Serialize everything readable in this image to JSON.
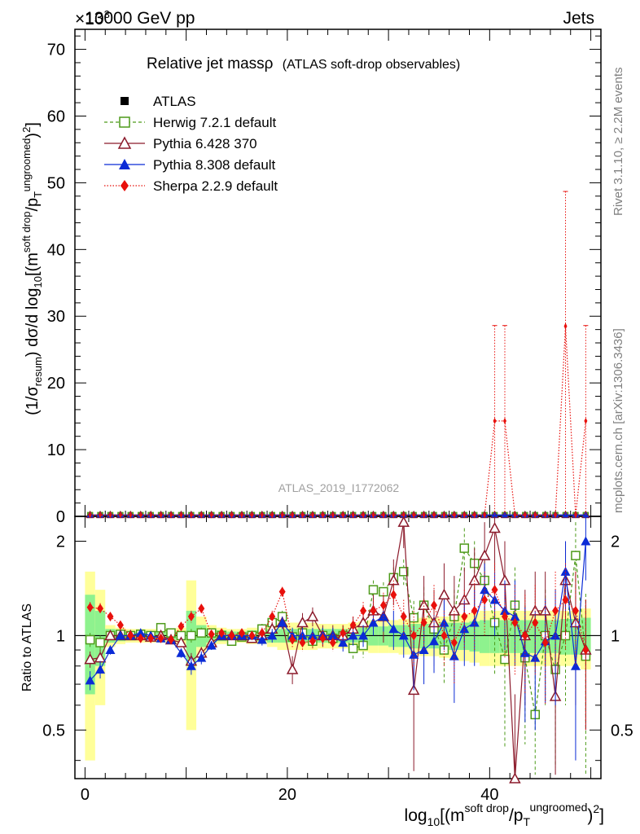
{
  "header": {
    "left_label": "13000 GeV pp",
    "exponent_label": "×10^{3}",
    "right_label": "Jets"
  },
  "watermark": "ATLAS_2019_I1772062",
  "side_texts": {
    "upper": "Rivet 3.1.10, ≥ 2.2M events",
    "lower": "mcplots.cern.ch [arXiv:1306.3436]"
  },
  "chart_data": {
    "type": "line",
    "title": "Relative jet massρ",
    "subtitle": "(ATLAS soft-drop observables)",
    "xlabel": "log10[(m^{soft drop}/pT^{ungroomed})^2]",
    "ylabel": "(1/σresum) dσ/d log10[(m^{soft drop}/pT^{ungroomed})^2]",
    "ratio_ylabel": "Ratio to ATLAS",
    "x_ticks": [
      "0",
      "20",
      "40"
    ],
    "y_ticks": [
      "0",
      "10",
      "20",
      "30",
      "40",
      "50",
      "60",
      "70"
    ],
    "ratio_ticks": [
      "0.5",
      "1",
      "2"
    ],
    "xlim": [
      -1,
      51
    ],
    "ylim": [
      0,
      73
    ],
    "ratio_ylim": [
      0.35,
      2.4
    ],
    "ratio_log_scale": true,
    "x": [
      0.5,
      1.5,
      2.5,
      3.5,
      4.5,
      5.5,
      6.5,
      7.5,
      8.5,
      9.5,
      10.5,
      11.5,
      12.5,
      13.5,
      14.5,
      15.5,
      16.5,
      17.5,
      18.5,
      19.5,
      20.5,
      21.5,
      22.5,
      23.5,
      24.5,
      25.5,
      26.5,
      27.5,
      28.5,
      29.5,
      30.5,
      31.5,
      32.5,
      33.5,
      34.5,
      35.5,
      36.5,
      37.5,
      38.5,
      39.5,
      40.5,
      41.5,
      42.5,
      43.5,
      44.5,
      45.5,
      46.5,
      47.5,
      48.5,
      49.5
    ],
    "main_series": [
      {
        "name": "ATLAS",
        "color": "#000000",
        "marker": "filled-square",
        "values": [
          0.2,
          0.2,
          0.2,
          0.2,
          0.2,
          0.2,
          0.2,
          0.2,
          0.2,
          0.2,
          0.2,
          0.2,
          0.2,
          0.2,
          0.2,
          0.2,
          0.2,
          0.2,
          0.2,
          0.2,
          0.2,
          0.2,
          0.2,
          0.2,
          0.2,
          0.2,
          0.2,
          0.2,
          0.2,
          0.2,
          0.2,
          0.2,
          0.2,
          0.2,
          0.2,
          0.2,
          0.2,
          0.2,
          0.2,
          0.2,
          0.2,
          0.2,
          0.2,
          0.2,
          0.2,
          0.2,
          0.2,
          0.2,
          0.2,
          0.2
        ]
      },
      {
        "name": "Herwig 7.2.1 default",
        "color": "#4d9a1a",
        "marker": "open-square",
        "dash": "4,3",
        "values": [
          0.2,
          0.2,
          0.2,
          0.2,
          0.2,
          0.2,
          0.2,
          0.2,
          0.2,
          0.2,
          0.2,
          0.2,
          0.2,
          0.2,
          0.2,
          0.2,
          0.2,
          0.2,
          0.2,
          0.2,
          0.2,
          0.2,
          0.2,
          0.2,
          0.2,
          0.2,
          0.2,
          0.2,
          0.2,
          0.2,
          0.2,
          0.2,
          0.2,
          0.2,
          0.2,
          0.2,
          0.2,
          0.2,
          0.2,
          0.2,
          0.2,
          0.2,
          0.2,
          0.2,
          0.2,
          0.2,
          0.2,
          0.2,
          0.2,
          0.2
        ]
      },
      {
        "name": "Pythia 6.428 370",
        "color": "#8b1a2b",
        "marker": "open-triangle",
        "values": [
          0.2,
          0.2,
          0.2,
          0.2,
          0.2,
          0.2,
          0.2,
          0.2,
          0.2,
          0.2,
          0.2,
          0.2,
          0.2,
          0.2,
          0.2,
          0.2,
          0.2,
          0.2,
          0.2,
          0.2,
          0.2,
          0.2,
          0.2,
          0.2,
          0.2,
          0.2,
          0.2,
          0.2,
          0.2,
          0.2,
          0.2,
          0.2,
          0.2,
          0.2,
          0.2,
          0.2,
          0.2,
          0.2,
          0.2,
          0.2,
          0.2,
          0.2,
          0.2,
          0.2,
          0.2,
          0.2,
          0.2,
          0.2,
          0.2,
          0.2
        ]
      },
      {
        "name": "Pythia 8.308 default",
        "color": "#0b2bd6",
        "marker": "filled-triangle",
        "values": [
          0.2,
          0.2,
          0.2,
          0.2,
          0.2,
          0.2,
          0.2,
          0.2,
          0.2,
          0.2,
          0.2,
          0.2,
          0.2,
          0.2,
          0.2,
          0.2,
          0.2,
          0.2,
          0.2,
          0.2,
          0.2,
          0.2,
          0.2,
          0.2,
          0.2,
          0.2,
          0.2,
          0.2,
          0.2,
          0.2,
          0.2,
          0.2,
          0.2,
          0.2,
          0.2,
          0.2,
          0.2,
          0.2,
          0.2,
          0.2,
          0.2,
          0.2,
          0.2,
          0.2,
          0.2,
          0.2,
          0.2,
          0.2,
          0.2,
          0.2
        ]
      },
      {
        "name": "Sherpa 2.2.9 default",
        "color": "#e8100c",
        "marker": "filled-diamond",
        "dash": "1.5,2",
        "values": [
          0.2,
          0.2,
          0.2,
          0.2,
          0.2,
          0.2,
          0.2,
          0.2,
          0.2,
          0.2,
          0.2,
          0.2,
          0.2,
          0.2,
          0.2,
          0.2,
          0.2,
          0.2,
          0.2,
          0.2,
          0.2,
          0.2,
          0.2,
          0.2,
          0.2,
          0.2,
          0.2,
          0.2,
          0.2,
          0.2,
          0.2,
          0.2,
          0.2,
          0.2,
          0.2,
          0.2,
          0.2,
          0.2,
          0.2,
          0.2,
          14.3,
          14.3,
          0.2,
          0.2,
          0.2,
          0.2,
          0.2,
          28.5,
          0.2,
          14.3
        ],
        "err_up": [
          0,
          0,
          0,
          0,
          0,
          0,
          0,
          0,
          0,
          0,
          0,
          0,
          0,
          0,
          0,
          0,
          0,
          0,
          0,
          0,
          0,
          0,
          0,
          0,
          0,
          0,
          0,
          0,
          0,
          0,
          0,
          0,
          0,
          0,
          0,
          0,
          0,
          0,
          0,
          0,
          14.3,
          14.3,
          0,
          0,
          0,
          0,
          0,
          20.2,
          0,
          14.3
        ],
        "err_dn": [
          0,
          0,
          0,
          0,
          0,
          0,
          0,
          0,
          0,
          0,
          0,
          0,
          0,
          0,
          0,
          0,
          0,
          0,
          0,
          0,
          0,
          0,
          0,
          0,
          0,
          0,
          0,
          0,
          0,
          0,
          0,
          0,
          0,
          0,
          0,
          0,
          0,
          0,
          0,
          0,
          14.3,
          14.3,
          0,
          0,
          0,
          0,
          0,
          28.5,
          0,
          14.3
        ]
      }
    ],
    "ratio_band": {
      "inner_color": "#8ef28e",
      "outer_color": "#ffff99",
      "inner": [
        0.35,
        0.2,
        0.05,
        0.04,
        0.03,
        0.03,
        0.03,
        0.03,
        0.03,
        0.03,
        0.2,
        0.08,
        0.05,
        0.04,
        0.03,
        0.03,
        0.04,
        0.04,
        0.05,
        0.05,
        0.05,
        0.05,
        0.05,
        0.05,
        0.05,
        0.05,
        0.05,
        0.06,
        0.07,
        0.07,
        0.08,
        0.08,
        0.09,
        0.09,
        0.09,
        0.1,
        0.1,
        0.1,
        0.11,
        0.12,
        0.12,
        0.12,
        0.12,
        0.12,
        0.12,
        0.12,
        0.12,
        0.13,
        0.13,
        0.14
      ],
      "outer": [
        0.6,
        0.4,
        0.08,
        0.06,
        0.05,
        0.05,
        0.05,
        0.05,
        0.05,
        0.06,
        0.5,
        0.15,
        0.08,
        0.06,
        0.05,
        0.05,
        0.06,
        0.06,
        0.08,
        0.1,
        0.1,
        0.1,
        0.1,
        0.09,
        0.09,
        0.09,
        0.1,
        0.11,
        0.12,
        0.12,
        0.12,
        0.13,
        0.13,
        0.14,
        0.14,
        0.15,
        0.16,
        0.17,
        0.18,
        0.2,
        0.2,
        0.2,
        0.2,
        0.2,
        0.2,
        0.2,
        0.2,
        0.2,
        0.2,
        0.22
      ]
    },
    "ratio_series": [
      {
        "name": "Herwig 7.2.1 default",
        "color": "#4d9a1a",
        "marker": "open-square",
        "dash": "4,3",
        "values": [
          0.97,
          0.95,
          1.0,
          1.01,
          1.0,
          1.01,
          1.0,
          1.06,
          1.02,
          1.0,
          1.0,
          1.02,
          1.02,
          1.0,
          0.96,
          0.99,
          1.0,
          1.05,
          1.1,
          1.15,
          0.99,
          1.02,
          0.96,
          1.0,
          0.98,
          1.0,
          0.91,
          0.93,
          1.4,
          1.38,
          1.53,
          1.6,
          1.14,
          1.25,
          1.05,
          0.9,
          1.15,
          1.9,
          1.7,
          1.5,
          1.1,
          0.84,
          1.25,
          0.85,
          0.56,
          1.0,
          0.78,
          1.0,
          1.8,
          0.86
        ],
        "err": [
          0.05,
          0.05,
          0.03,
          0.03,
          0.02,
          0.02,
          0.02,
          0.02,
          0.02,
          0.02,
          0.05,
          0.04,
          0.03,
          0.03,
          0.03,
          0.03,
          0.03,
          0.04,
          0.05,
          0.05,
          0.05,
          0.06,
          0.06,
          0.06,
          0.06,
          0.07,
          0.07,
          0.08,
          0.1,
          0.1,
          0.12,
          0.15,
          0.15,
          0.18,
          0.2,
          0.2,
          0.25,
          0.3,
          0.3,
          0.3,
          0.35,
          0.4,
          0.4,
          0.4,
          0.4,
          0.4,
          0.4,
          0.4,
          0.5,
          0.5
        ]
      },
      {
        "name": "Pythia 6.428 370",
        "color": "#8b1a2b",
        "marker": "open-triangle",
        "values": [
          0.84,
          0.85,
          1.0,
          1.0,
          1.0,
          1.0,
          0.99,
          1.0,
          0.97,
          0.95,
          0.83,
          0.88,
          0.95,
          1.0,
          1.0,
          1.0,
          0.98,
          1.0,
          1.05,
          1.1,
          0.78,
          1.1,
          1.15,
          1.0,
          1.0,
          1.0,
          1.05,
          1.1,
          1.2,
          1.15,
          1.5,
          2.3,
          0.67,
          1.25,
          1.1,
          1.35,
          1.2,
          1.3,
          1.5,
          1.8,
          2.2,
          1.5,
          0.35,
          1.0,
          1.2,
          1.2,
          0.64,
          1.5,
          1.1,
          0.9
        ],
        "err": [
          0.05,
          0.05,
          0.03,
          0.03,
          0.02,
          0.02,
          0.02,
          0.02,
          0.02,
          0.03,
          0.05,
          0.04,
          0.03,
          0.03,
          0.03,
          0.03,
          0.03,
          0.04,
          0.05,
          0.05,
          0.08,
          0.08,
          0.08,
          0.08,
          0.08,
          0.08,
          0.1,
          0.12,
          0.15,
          0.2,
          0.25,
          0.4,
          0.3,
          0.3,
          0.3,
          0.35,
          0.35,
          0.35,
          0.4,
          0.5,
          0.6,
          0.5,
          0.3,
          0.4,
          0.4,
          0.4,
          0.3,
          0.5,
          0.5,
          0.4
        ]
      },
      {
        "name": "Pythia 8.308 default",
        "color": "#0b2bd6",
        "marker": "filled-triangle",
        "values": [
          0.72,
          0.78,
          0.9,
          1.0,
          1.0,
          1.02,
          1.0,
          0.98,
          0.97,
          0.88,
          0.8,
          0.85,
          0.93,
          1.0,
          1.0,
          1.0,
          1.0,
          0.97,
          1.0,
          1.1,
          1.0,
          1.0,
          1.0,
          1.0,
          1.0,
          0.95,
          1.0,
          1.0,
          1.1,
          1.15,
          1.05,
          1.0,
          0.87,
          0.9,
          0.96,
          1.1,
          0.86,
          1.05,
          1.1,
          1.4,
          1.3,
          1.2,
          1.15,
          0.88,
          0.85,
          0.96,
          1.0,
          1.6,
          0.8,
          2.0
        ],
        "err": [
          0.05,
          0.05,
          0.03,
          0.03,
          0.02,
          0.02,
          0.02,
          0.02,
          0.02,
          0.03,
          0.05,
          0.04,
          0.03,
          0.03,
          0.03,
          0.03,
          0.03,
          0.04,
          0.05,
          0.05,
          0.06,
          0.06,
          0.06,
          0.06,
          0.06,
          0.06,
          0.07,
          0.08,
          0.1,
          0.12,
          0.15,
          0.15,
          0.2,
          0.2,
          0.2,
          0.2,
          0.25,
          0.25,
          0.3,
          0.3,
          0.3,
          0.3,
          0.35,
          0.35,
          0.35,
          0.35,
          0.4,
          0.4,
          0.4,
          0.5
        ]
      },
      {
        "name": "Sherpa 2.2.9 default",
        "color": "#e8100c",
        "marker": "filled-diamond",
        "dash": "1.5,2",
        "values": [
          1.23,
          1.22,
          1.15,
          1.08,
          1.0,
          0.98,
          0.98,
          0.98,
          0.97,
          1.07,
          1.15,
          1.22,
          1.01,
          1.02,
          1.0,
          1.02,
          1.0,
          1.02,
          1.15,
          1.38,
          0.97,
          0.95,
          0.96,
          0.98,
          0.95,
          1.02,
          1.08,
          1.2,
          1.2,
          1.25,
          1.35,
          1.15,
          1.0,
          1.1,
          1.25,
          1.0,
          0.95,
          1.15,
          1.2,
          1.3,
          1.4,
          1.15,
          1.1,
          1.0,
          1.1,
          0.95,
          1.2,
          1.3,
          1.2,
          0.9
        ],
        "err": [
          0.05,
          0.05,
          0.03,
          0.03,
          0.02,
          0.02,
          0.02,
          0.02,
          0.02,
          0.03,
          0.05,
          0.04,
          0.03,
          0.03,
          0.03,
          0.03,
          0.03,
          0.04,
          0.05,
          0.05,
          0.06,
          0.06,
          0.06,
          0.06,
          0.06,
          0.06,
          0.07,
          0.08,
          0.1,
          0.12,
          0.15,
          0.15,
          0.2,
          0.2,
          0.2,
          0.2,
          0.25,
          0.25,
          0.3,
          0.3,
          0.3,
          0.3,
          0.35,
          0.35,
          0.35,
          0.35,
          0.4,
          0.4,
          0.4,
          0.4
        ]
      }
    ],
    "legend_placement": "top-left",
    "legend": [
      "ATLAS",
      "Herwig 7.2.1 default",
      "Pythia 6.428 370",
      "Pythia 8.308 default",
      "Sherpa 2.2.9 default"
    ],
    "grid": false
  }
}
